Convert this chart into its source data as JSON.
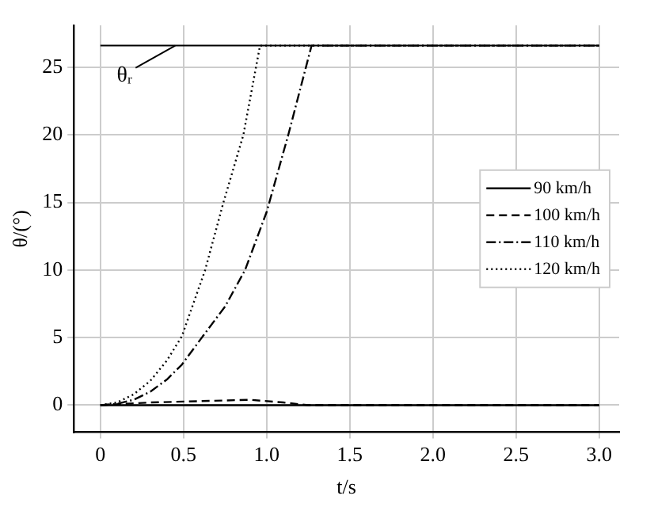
{
  "chart_data": {
    "type": "line",
    "xlabel": "t/s",
    "ylabel": "θ/(°)",
    "xlim": [
      -0.16,
      3.12
    ],
    "ylim": [
      -2,
      28.1
    ],
    "xticks": [
      0,
      0.5,
      {
        "value": 1,
        "label": "1.0"
      },
      1.5,
      {
        "value": 2,
        "label": "2.0"
      },
      2.5,
      {
        "value": 3,
        "label": "3.0"
      }
    ],
    "yticks": [
      0,
      5,
      10,
      15,
      20,
      25
    ],
    "grid": true,
    "legend": "right",
    "marker": "none",
    "ref_lines": [
      {
        "axis": "y",
        "value": 26.6,
        "label": "θᵣ",
        "color": "#000000",
        "line_style": "solid"
      }
    ],
    "series": [
      {
        "name": "90 km/h",
        "color": "#000000",
        "line_style": "solid",
        "x": [
          0,
          3
        ],
        "values": [
          0,
          0
        ]
      },
      {
        "name": "100 km/h",
        "color": "#000000",
        "line_style": "dashed",
        "x": [
          0,
          0.3,
          0.6,
          0.9,
          1.1,
          1.25,
          3
        ],
        "values": [
          0,
          0.2,
          0.3,
          0.4,
          0.2,
          0,
          0
        ]
      },
      {
        "name": "110 km/h",
        "color": "#000000",
        "line_style": "dashdot",
        "x": [
          0,
          0.1,
          0.2,
          0.3,
          0.4,
          0.49,
          0.61,
          0.75,
          0.87,
          1.0,
          1.13,
          1.27,
          3
        ],
        "values": [
          0,
          0.1,
          0.4,
          1,
          1.9,
          3,
          5,
          7.3,
          10,
          14.3,
          20,
          26.6,
          26.6
        ]
      },
      {
        "name": "120 km/h",
        "color": "#000000",
        "line_style": "dotted",
        "x": [
          0,
          0.1,
          0.2,
          0.3,
          0.4,
          0.49,
          0.63,
          0.74,
          0.86,
          0.96,
          3
        ],
        "values": [
          0,
          0.2,
          0.8,
          1.8,
          3.3,
          5.1,
          10,
          15,
          20,
          26.6,
          26.6
        ]
      }
    ]
  }
}
